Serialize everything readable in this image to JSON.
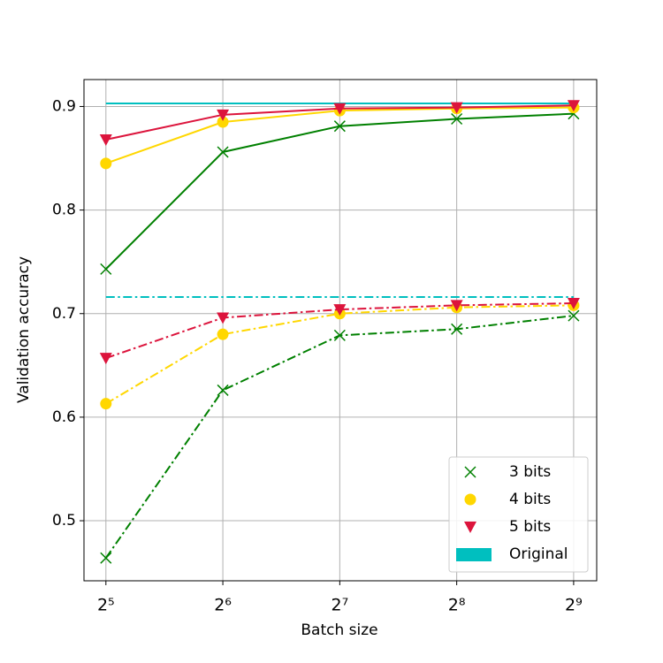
{
  "chart_data": {
    "type": "line",
    "xlabel": "Batch size",
    "ylabel": "Validation accuracy",
    "x": [
      32,
      64,
      128,
      256,
      512
    ],
    "xscale": "log2",
    "xlim": [
      28.1,
      587
    ],
    "xticks": [
      {
        "value": 32,
        "label": "2⁵"
      },
      {
        "value": 64,
        "label": "2⁶"
      },
      {
        "value": 128,
        "label": "2⁷"
      },
      {
        "value": 256,
        "label": "2⁸"
      },
      {
        "value": 512,
        "label": "2⁹"
      }
    ],
    "ylim": [
      0.442,
      0.926
    ],
    "yticks": [
      0.5,
      0.6,
      0.7,
      0.8,
      0.9
    ],
    "grid": true,
    "legend": "lower right",
    "series": [
      {
        "name": "3 bits",
        "color": "#008000",
        "marker": "x",
        "lines": [
          {
            "style": "solid",
            "values": [
              0.743,
              0.856,
              0.881,
              0.888,
              0.893
            ]
          },
          {
            "style": "dashdot",
            "values": [
              0.464,
              0.626,
              0.679,
              0.685,
              0.698
            ]
          }
        ]
      },
      {
        "name": "4 bits",
        "color": "#ffd700",
        "marker": "circle",
        "lines": [
          {
            "style": "solid",
            "values": [
              0.845,
              0.885,
              0.896,
              0.898,
              0.899
            ]
          },
          {
            "style": "dashdot",
            "values": [
              0.613,
              0.68,
              0.7,
              0.706,
              0.708
            ]
          }
        ]
      },
      {
        "name": "5 bits",
        "color": "#dc143c",
        "marker": "triangle-down",
        "lines": [
          {
            "style": "solid",
            "values": [
              0.868,
              0.892,
              0.898,
              0.899,
              0.901
            ]
          },
          {
            "style": "dashdot",
            "values": [
              0.657,
              0.696,
              0.704,
              0.708,
              0.71
            ]
          }
        ]
      }
    ],
    "reference": {
      "name": "Original",
      "color": "#00bfbf",
      "lines": [
        {
          "style": "solid",
          "value": 0.903
        },
        {
          "style": "dashdot",
          "value": 0.716
        }
      ]
    }
  }
}
